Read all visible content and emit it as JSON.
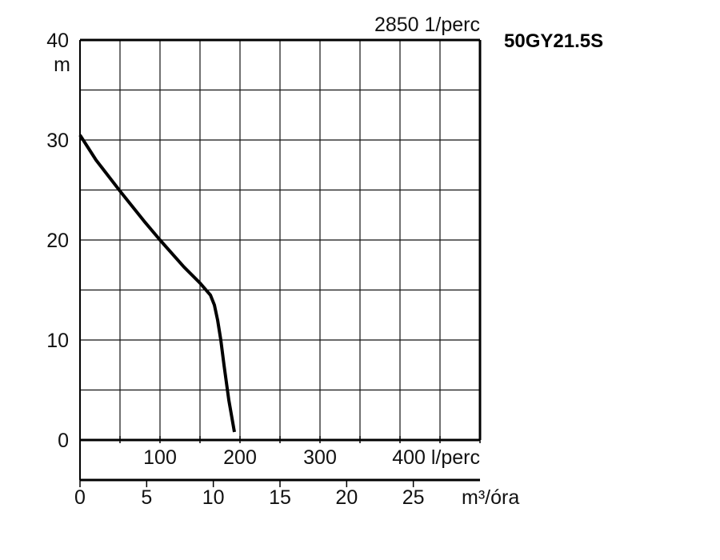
{
  "chart_data": {
    "type": "line",
    "title": "50GY21.5S",
    "speed_label": "2850 1/perc",
    "ylabel": "m",
    "ylim": [
      0,
      40
    ],
    "y_ticks": [
      "0",
      "10",
      "20",
      "30",
      "40"
    ],
    "xlim_lpm": [
      0,
      500
    ],
    "x_ticks_lpm": [
      "100",
      "200",
      "300",
      "400 l/perc"
    ],
    "x_ticks_m3h": [
      "0",
      "5",
      "10",
      "15",
      "20",
      "25"
    ],
    "x2label": "m³/óra",
    "grid": true,
    "series": [
      {
        "x_lpm": [
          0,
          20,
          50,
          80,
          100,
          130,
          150,
          163,
          168,
          172,
          176,
          180,
          186,
          193
        ],
        "y": [
          30.5,
          28.0,
          24.9,
          21.9,
          20.0,
          17.3,
          15.7,
          14.5,
          13.5,
          12.0,
          10.0,
          7.5,
          4.0,
          0.8
        ]
      }
    ]
  }
}
